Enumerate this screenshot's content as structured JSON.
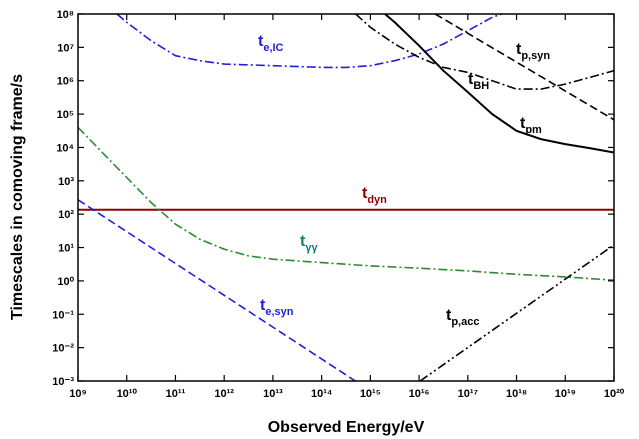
{
  "chart_data": {
    "type": "line",
    "xlabel": "Observed Energy/eV",
    "ylabel": "Timescales in comoving frame/s",
    "xscale": "log",
    "yscale": "log",
    "xlim": [
      1000000000.0,
      1e+20
    ],
    "ylim": [
      0.001,
      100000000.0
    ],
    "xticks": [
      {
        "value": 1000000000.0,
        "label": "10⁹"
      },
      {
        "value": 10000000000.0,
        "label": "10¹⁰"
      },
      {
        "value": 100000000000.0,
        "label": "10¹¹"
      },
      {
        "value": 1000000000000.0,
        "label": "10¹²"
      },
      {
        "value": 10000000000000.0,
        "label": "10¹³"
      },
      {
        "value": 100000000000000.0,
        "label": "10¹⁴"
      },
      {
        "value": 1000000000000000.0,
        "label": "10¹⁵"
      },
      {
        "value": 1e+16,
        "label": "10¹⁶"
      },
      {
        "value": 1e+17,
        "label": "10¹⁷"
      },
      {
        "value": 1e+18,
        "label": "10¹⁸"
      },
      {
        "value": 1e+19,
        "label": "10¹⁹"
      },
      {
        "value": 1e+20,
        "label": "10²⁰"
      }
    ],
    "yticks": [
      {
        "value": 0.001,
        "label": "10⁻³"
      },
      {
        "value": 0.01,
        "label": "10⁻²"
      },
      {
        "value": 0.1,
        "label": "10⁻¹"
      },
      {
        "value": 1,
        "label": "10⁰"
      },
      {
        "value": 10,
        "label": "10¹"
      },
      {
        "value": 100,
        "label": "10²"
      },
      {
        "value": 1000,
        "label": "10³"
      },
      {
        "value": 10000,
        "label": "10⁴"
      },
      {
        "value": 100000,
        "label": "10⁵"
      },
      {
        "value": 1000000,
        "label": "10⁶"
      },
      {
        "value": 10000000,
        "label": "10⁷"
      },
      {
        "value": 100000000,
        "label": "10⁸"
      }
    ],
    "series": [
      {
        "name": "t",
        "subscript": "e,IC",
        "color": "#1f1fd6",
        "label_color": "#1f1fd6",
        "dash": "dashdot",
        "x": [
          6310000000.0,
          10000000000.0,
          31600000000.0,
          100000000000.0,
          316000000000.0,
          1000000000000.0,
          10000000000000.0,
          100000000000000.0,
          316000000000000.0,
          1000000000000000.0,
          3160000000000000.0,
          1e+16,
          3.16e+16,
          1e+17,
          3.16e+17,
          5.01e+17
        ],
        "values": [
          100000000.0,
          56200000.0,
          15800000.0,
          5620000.0,
          3980000.0,
          3160000.0,
          2820000.0,
          2510000.0,
          2510000.0,
          2820000.0,
          3980000.0,
          6310000.0,
          12600000.0,
          31600000.0,
          79400000.0,
          100000000.0
        ]
      },
      {
        "name": "t",
        "subscript": "dyn",
        "color": "#8b0000",
        "label_color": "#8b0000",
        "dash": "solid",
        "x": [
          1000000000.0,
          1e+20
        ],
        "values": [
          135,
          135
        ]
      },
      {
        "name": "t",
        "subscript": "γγ",
        "color": "#2e8b2e",
        "label_color": "#008080",
        "dash": "dashdot",
        "x": [
          1000000000.0,
          3160000000.0,
          10000000000.0,
          31600000000.0,
          100000000000.0,
          316000000000.0,
          1000000000000.0,
          3160000000000.0,
          10000000000000.0,
          100000000000000.0,
          1000000000000000.0,
          1e+16,
          1e+17,
          1e+18,
          1e+19,
          1e+20
        ],
        "values": [
          39800,
          7079,
          1259,
          224,
          50.1,
          17.8,
          8.91,
          5.62,
          4.47,
          3.55,
          2.82,
          2.4,
          2.0,
          1.58,
          1.32,
          1.05
        ]
      },
      {
        "name": "t",
        "subscript": "e,syn",
        "color": "#1f1fd6",
        "label_color": "#1f1fd6",
        "dash": "dashed",
        "x": [
          1000000000.0,
          1000000000000.0,
          490000000000000.0
        ],
        "values": [
          269,
          0.37,
          0.001
        ]
      },
      {
        "name": "t",
        "subscript": "p,acc",
        "color": "#000000",
        "label_color": "#000000",
        "dash": "dashdotdot",
        "x": [
          1.05e+16,
          1e+20
        ],
        "values": [
          0.001,
          12
        ]
      },
      {
        "name": "t",
        "subscript": "BH",
        "color": "#000000",
        "label_color": "#000000",
        "dash": "dashdot",
        "x": [
          501000000000000.0,
          1000000000000000.0,
          3160000000000000.0,
          1e+16,
          3.16e+16,
          1e+17,
          3.16e+17,
          1e+18,
          3.16e+18,
          1e+19,
          3.16e+19,
          1e+20
        ],
        "values": [
          100000000.0,
          39800000.0,
          12600000.0,
          5010000.0,
          2510000.0,
          1780000.0,
          1000000.0,
          562000.0,
          562000.0,
          794000.0,
          1260000.0,
          2000000.0
        ]
      },
      {
        "name": "t",
        "subscript": "p,syn",
        "color": "#000000",
        "label_color": "#000000",
        "dash": "dashed",
        "x": [
          2.14e+16,
          1e+20
        ],
        "values": [
          100000000.0,
          67600
        ]
      },
      {
        "name": "t",
        "subscript": "pm",
        "color": "#000000",
        "label_color": "#000000",
        "dash": "solid",
        "x": [
          2000000000000000.0,
          3160000000000000.0,
          1e+16,
          3.16e+16,
          1e+17,
          3.16e+17,
          1e+18,
          3.16e+18,
          1e+19,
          3.16e+19,
          1e+20
        ],
        "values": [
          100000000.0,
          56200000.0,
          11200000.0,
          2000000.0,
          457000,
          100000,
          31600,
          17800,
          12600,
          9550,
          7080
        ]
      }
    ]
  }
}
